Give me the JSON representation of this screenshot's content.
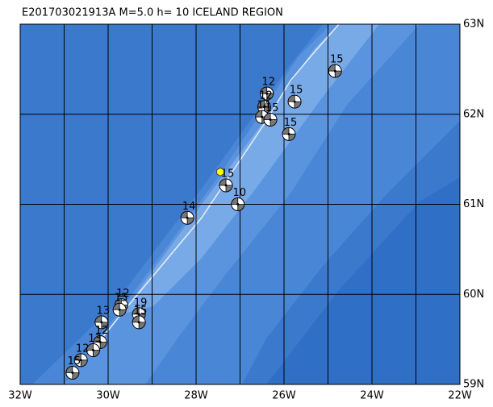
{
  "title": "E201703021913A M=5.0 h= 10 ICELAND REGION",
  "map": {
    "lon_range": [
      -32,
      -22
    ],
    "lat_range": [
      59,
      63
    ],
    "lon_ticks": [
      {
        "value": -32,
        "label": "32W"
      },
      {
        "value": -30,
        "label": "30W"
      },
      {
        "value": -28,
        "label": "28W"
      },
      {
        "value": -26,
        "label": "26W"
      },
      {
        "value": -24,
        "label": "24W"
      },
      {
        "value": -22,
        "label": "22W"
      }
    ],
    "lat_ticks": [
      {
        "value": 63,
        "label": "63N"
      },
      {
        "value": 62,
        "label": "62N"
      },
      {
        "value": 61,
        "label": "61N"
      },
      {
        "value": 60,
        "label": "60N"
      },
      {
        "value": 59,
        "label": "59N"
      }
    ],
    "grid_lon": [
      -31,
      -30,
      -29,
      -28,
      -27,
      -26,
      -25,
      -24,
      -23
    ],
    "grid_lat": [
      62,
      61,
      60
    ],
    "latest_event": {
      "lon": -27.45,
      "lat": 61.36
    },
    "events": [
      {
        "lon": -24.84,
        "lat": 62.48,
        "depth": 15
      },
      {
        "lon": -26.39,
        "lat": 62.23,
        "depth": 12
      },
      {
        "lon": -25.76,
        "lat": 62.14,
        "depth": 15
      },
      {
        "lon": -26.45,
        "lat": 62.08,
        "depth": 12
      },
      {
        "lon": -26.5,
        "lat": 61.97,
        "depth": 14
      },
      {
        "lon": -26.31,
        "lat": 61.94,
        "depth": 15
      },
      {
        "lon": -25.89,
        "lat": 61.78,
        "depth": 15
      },
      {
        "lon": -27.32,
        "lat": 61.21,
        "depth": 15
      },
      {
        "lon": -27.05,
        "lat": 61.0,
        "depth": 10
      },
      {
        "lon": -28.2,
        "lat": 60.85,
        "depth": 14
      },
      {
        "lon": -29.7,
        "lat": 59.88,
        "depth": 12
      },
      {
        "lon": -29.74,
        "lat": 59.83,
        "depth": 15
      },
      {
        "lon": -30.15,
        "lat": 59.69,
        "depth": 13
      },
      {
        "lon": -29.3,
        "lat": 59.78,
        "depth": 19
      },
      {
        "lon": -29.3,
        "lat": 59.69,
        "depth": 15
      },
      {
        "lon": -30.18,
        "lat": 59.47,
        "depth": 12
      },
      {
        "lon": -30.34,
        "lat": 59.38,
        "depth": 13
      },
      {
        "lon": -30.62,
        "lat": 59.27,
        "depth": 12
      },
      {
        "lon": -30.81,
        "lat": 59.13,
        "depth": 15
      }
    ]
  }
}
